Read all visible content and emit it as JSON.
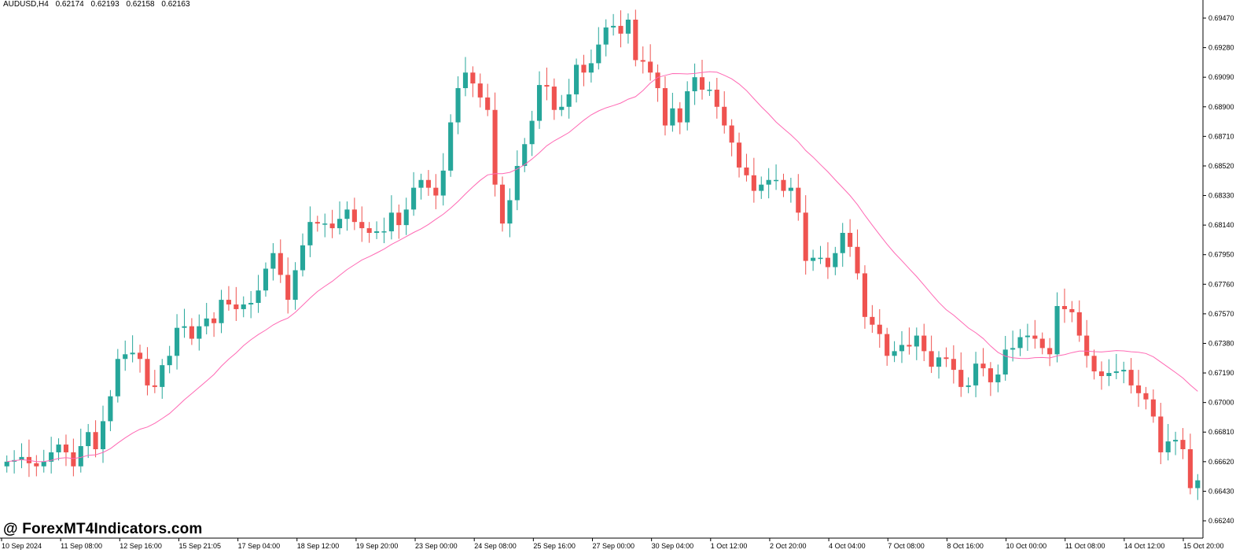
{
  "header": {
    "symbol": "AUDUSD,H4",
    "ohlc": [
      "0.62174",
      "0.62193",
      "0.62158",
      "0.62163"
    ]
  },
  "watermark": "@ ForexMT4Indicators.com",
  "colors": {
    "bull": "#26a69a",
    "bear": "#ef5350",
    "ma": "#ff69b4",
    "axis": "#000000",
    "background": "#ffffff"
  },
  "chart_data": {
    "type": "candlestick",
    "title": "",
    "ylim": [
      0.6615,
      0.6957
    ],
    "y_ticks": [
      "0.69470",
      "0.69280",
      "0.69090",
      "0.68900",
      "0.68710",
      "0.68520",
      "0.68330",
      "0.68140",
      "0.67950",
      "0.67760",
      "0.67570",
      "0.67380",
      "0.67190",
      "0.67000",
      "0.66810",
      "0.66620",
      "0.66430",
      "0.66240"
    ],
    "x_ticks": [
      "10 Sep 2024",
      "11 Sep 08:00",
      "12 Sep 16:00",
      "15 Sep 21:05",
      "17 Sep 04:00",
      "18 Sep 12:00",
      "19 Sep 20:00",
      "23 Sep 00:00",
      "24 Sep 08:00",
      "25 Sep 16:00",
      "27 Sep 00:00",
      "30 Sep 04:00",
      "1 Oct 12:00",
      "2 Oct 20:00",
      "4 Oct 04:00",
      "7 Oct 08:00",
      "8 Oct 16:00",
      "10 Oct 00:00",
      "11 Oct 08:00",
      "14 Oct 12:00",
      "15 Oct 20:00"
    ],
    "candles_close": [
      0.6662,
      0.6663,
      0.6665,
      0.6661,
      0.6659,
      0.6662,
      0.6668,
      0.6673,
      0.6668,
      0.6659,
      0.6672,
      0.6681,
      0.667,
      0.6688,
      0.6704,
      0.6728,
      0.6731,
      0.6732,
      0.6728,
      0.6711,
      0.671,
      0.6724,
      0.673,
      0.6748,
      0.6749,
      0.6741,
      0.6749,
      0.6754,
      0.6751,
      0.6766,
      0.6763,
      0.676,
      0.6763,
      0.6764,
      0.6772,
      0.6786,
      0.6796,
      0.6782,
      0.6766,
      0.6785,
      0.6801,
      0.6816,
      0.6815,
      0.6815,
      0.6812,
      0.6818,
      0.6824,
      0.6816,
      0.6812,
      0.6809,
      0.681,
      0.681,
      0.6822,
      0.6814,
      0.6824,
      0.6838,
      0.6843,
      0.6838,
      0.6833,
      0.6849,
      0.688,
      0.6902,
      0.6912,
      0.6905,
      0.6896,
      0.6888,
      0.684,
      0.6815,
      0.683,
      0.6852,
      0.6866,
      0.6881,
      0.6904,
      0.6903,
      0.6888,
      0.689,
      0.6898,
      0.6917,
      0.6912,
      0.6918,
      0.693,
      0.6941,
      0.6942,
      0.6937,
      0.6946,
      0.692,
      0.6919,
      0.6912,
      0.6902,
      0.6878,
      0.6889,
      0.688,
      0.69,
      0.6909,
      0.6901,
      0.6901,
      0.689,
      0.6878,
      0.6867,
      0.6851,
      0.6846,
      0.6836,
      0.684,
      0.6843,
      0.6843,
      0.6836,
      0.6838,
      0.6822,
      0.6791,
      0.6793,
      0.6793,
      0.6787,
      0.6796,
      0.6809,
      0.68,
      0.6783,
      0.6755,
      0.675,
      0.6744,
      0.673,
      0.6733,
      0.6737,
      0.6736,
      0.6743,
      0.6733,
      0.6723,
      0.6729,
      0.6728,
      0.6721,
      0.671,
      0.6711,
      0.6725,
      0.6722,
      0.6713,
      0.6718,
      0.6734,
      0.6735,
      0.6742,
      0.6743,
      0.6741,
      0.6735,
      0.6731,
      0.6762,
      0.676,
      0.6758,
      0.6743,
      0.673,
      0.672,
      0.6717,
      0.6719,
      0.672,
      0.6721,
      0.6711,
      0.6706,
      0.6702,
      0.6691,
      0.6668,
      0.6675,
      0.6676,
      0.667,
      0.6645,
      0.665
    ]
  }
}
